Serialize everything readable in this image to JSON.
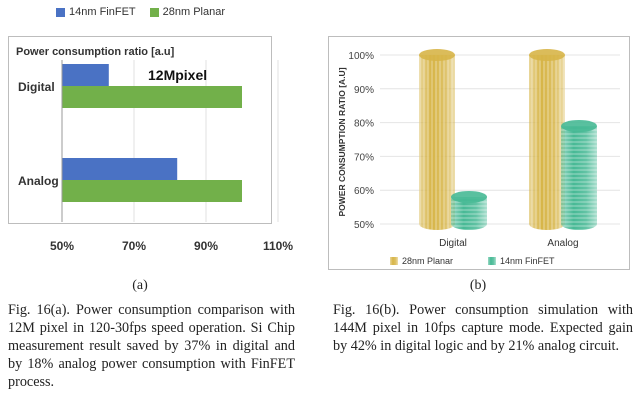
{
  "chart_data": [
    {
      "type": "bar",
      "orientation": "horizontal",
      "subtitle": "Power consumption ratio [a.u]",
      "annotation": "12Mpixel",
      "categories": [
        "Digital",
        "Analog"
      ],
      "series": [
        {
          "name": "14nm FinFET",
          "values": [
            63,
            82
          ],
          "color": "#4a72c4"
        },
        {
          "name": "28nm Planar",
          "values": [
            100,
            100
          ],
          "color": "#72b04a"
        }
      ],
      "xlim": [
        50,
        110
      ],
      "xticks": [
        "50%",
        "70%",
        "90%",
        "110%"
      ],
      "legend": "top",
      "grid": true
    },
    {
      "type": "bar",
      "style": "3d-cylinder",
      "ylabel": "POWER CONSUMPTION RATIO [A.U]",
      "categories": [
        "Digital",
        "Analog"
      ],
      "series": [
        {
          "name": "28nm Planar",
          "values": [
            100,
            100
          ],
          "color": "#d7b548"
        },
        {
          "name": "14nm FinFET",
          "values": [
            58,
            79
          ],
          "color": "#47b995"
        }
      ],
      "ylim": [
        50,
        100
      ],
      "yticks": [
        "50%",
        "60%",
        "70%",
        "80%",
        "90%",
        "100%"
      ],
      "legend": "bottom",
      "grid": true
    }
  ],
  "captions": {
    "a_label": "(a)",
    "b_label": "(b)",
    "a_text": "Fig. 16(a). Power consumption comparison with 12M pixel in 120-30fps speed operation. Si Chip measurement result saved by 37% in digital and by 18% analog power consumption with FinFET process.",
    "b_text": "Fig. 16(b). Power consumption simulation with 144M pixel in 10fps capture mode. Expected gain by 42% in digital logic and by 21% analog circuit."
  }
}
